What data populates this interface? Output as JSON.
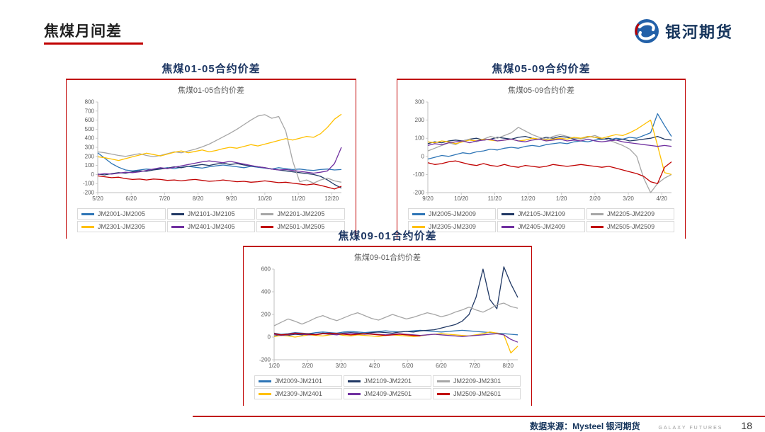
{
  "page": {
    "title": "焦煤月间差",
    "logo_text": "银河期货",
    "footer": {
      "source": "数据来源：Mysteel 银河期货",
      "brand": "GALAXY FUTURES",
      "page_number": "18"
    }
  },
  "colors": {
    "accent_red": "#C00000",
    "header_blue": "#1F3864",
    "axis_gray": "#BFBFBF",
    "text_gray": "#595959"
  },
  "chart_data": [
    {
      "type": "line",
      "header": "焦煤01-05合约价差",
      "inner_title": "焦煤01-05合约价差",
      "ylim": [
        -200,
        800
      ],
      "ytick_step": 100,
      "grid": false,
      "legend_position": "bottom",
      "x_labels": [
        "5/20",
        "6/20",
        "7/20",
        "8/20",
        "9/20",
        "10/20",
        "11/20",
        "12/20"
      ],
      "series": [
        {
          "name": "JM2001-JM2005",
          "color": "#2E75B6",
          "values": [
            240,
            180,
            120,
            80,
            50,
            40,
            50,
            60,
            55,
            65,
            75,
            65,
            80,
            90,
            80,
            70,
            85,
            95,
            105,
            95,
            85,
            75,
            90,
            80,
            70,
            60,
            75,
            65,
            55,
            60,
            50,
            45,
            55,
            60,
            50,
            55
          ]
        },
        {
          "name": "JM2101-JM2105",
          "color": "#203864",
          "values": [
            5,
            -5,
            10,
            20,
            15,
            30,
            40,
            35,
            50,
            60,
            70,
            85,
            75,
            90,
            100,
            110,
            100,
            115,
            125,
            110,
            120,
            105,
            95,
            85,
            75,
            60,
            50,
            40,
            30,
            20,
            10,
            0,
            -20,
            -60,
            -110,
            -150
          ]
        },
        {
          "name": "JM2201-JM2205",
          "color": "#A6A6A6",
          "values": [
            250,
            240,
            225,
            210,
            200,
            215,
            230,
            210,
            195,
            210,
            230,
            250,
            240,
            260,
            280,
            305,
            335,
            375,
            415,
            455,
            500,
            550,
            600,
            645,
            660,
            620,
            640,
            480,
            150,
            -80,
            -60,
            -95,
            -60,
            -40,
            -70,
            -85
          ]
        },
        {
          "name": "JM2301-JM2305",
          "color": "#FFC000",
          "values": [
            195,
            185,
            170,
            155,
            175,
            195,
            215,
            235,
            220,
            205,
            225,
            245,
            260,
            240,
            255,
            270,
            250,
            265,
            285,
            300,
            290,
            310,
            330,
            315,
            335,
            355,
            375,
            395,
            380,
            400,
            420,
            410,
            450,
            520,
            610,
            665
          ]
        },
        {
          "name": "JM2401-JM2405",
          "color": "#7030A0",
          "values": [
            0,
            10,
            5,
            15,
            25,
            20,
            30,
            45,
            60,
            75,
            65,
            80,
            95,
            110,
            125,
            140,
            150,
            140,
            130,
            145,
            130,
            115,
            100,
            85,
            75,
            60,
            50,
            55,
            45,
            35,
            25,
            15,
            25,
            40,
            120,
            300
          ]
        },
        {
          "name": "JM2501-JM2505",
          "color": "#C00000",
          "values": [
            -15,
            -25,
            -35,
            -30,
            -45,
            -55,
            -50,
            -60,
            -50,
            -55,
            -65,
            -60,
            -70,
            -60,
            -55,
            -65,
            -75,
            -70,
            -60,
            -70,
            -80,
            -75,
            -85,
            -80,
            -70,
            -80,
            -90,
            -85,
            -95,
            -105,
            -115,
            -105,
            -120,
            -140,
            -160,
            -130
          ]
        }
      ]
    },
    {
      "type": "line",
      "header": "焦煤05-09合约价差",
      "inner_title": "焦煤05-09合约价差",
      "ylim": [
        -200,
        300
      ],
      "ytick_step": 100,
      "grid": false,
      "legend_position": "bottom",
      "x_labels": [
        "9/20",
        "10/20",
        "11/20",
        "12/20",
        "1/20",
        "2/20",
        "3/20",
        "4/20"
      ],
      "series": [
        {
          "name": "JM2005-JM2009",
          "color": "#2E75B6",
          "values": [
            -15,
            -5,
            5,
            0,
            10,
            20,
            15,
            25,
            30,
            40,
            35,
            45,
            50,
            45,
            55,
            60,
            55,
            65,
            70,
            75,
            70,
            80,
            85,
            80,
            90,
            95,
            90,
            100,
            95,
            105,
            100,
            115,
            130,
            235,
            170,
            110
          ]
        },
        {
          "name": "JM2105-JM2109",
          "color": "#203864",
          "values": [
            70,
            80,
            75,
            85,
            90,
            85,
            95,
            100,
            90,
            95,
            105,
            100,
            95,
            105,
            110,
            100,
            95,
            105,
            100,
            110,
            105,
            95,
            100,
            110,
            105,
            95,
            100,
            90,
            95,
            85,
            90,
            95,
            100,
            110,
            95,
            90
          ]
        },
        {
          "name": "JM2205-JM2209",
          "color": "#A6A6A6",
          "values": [
            30,
            45,
            60,
            75,
            65,
            85,
            95,
            80,
            95,
            110,
            100,
            115,
            130,
            160,
            140,
            120,
            105,
            95,
            110,
            120,
            110,
            100,
            95,
            105,
            115,
            100,
            90,
            75,
            60,
            40,
            0,
            -120,
            -200,
            -150,
            -120,
            -100
          ]
        },
        {
          "name": "JM2305-JM2309",
          "color": "#FFC000",
          "values": [
            80,
            75,
            85,
            80,
            70,
            80,
            90,
            85,
            95,
            90,
            85,
            90,
            95,
            85,
            90,
            100,
            95,
            90,
            95,
            100,
            95,
            105,
            100,
            110,
            105,
            100,
            110,
            120,
            115,
            130,
            150,
            175,
            200,
            60,
            -90,
            -100
          ]
        },
        {
          "name": "JM2405-JM2409",
          "color": "#7030A0",
          "values": [
            60,
            70,
            65,
            75,
            80,
            85,
            75,
            85,
            90,
            95,
            85,
            90,
            95,
            85,
            80,
            90,
            95,
            85,
            90,
            95,
            85,
            90,
            85,
            95,
            85,
            80,
            85,
            90,
            80,
            75,
            70,
            65,
            60,
            55,
            60,
            55
          ]
        },
        {
          "name": "JM2505-JM2509",
          "color": "#C00000",
          "values": [
            -35,
            -45,
            -40,
            -30,
            -25,
            -35,
            -45,
            -50,
            -40,
            -50,
            -55,
            -45,
            -55,
            -60,
            -50,
            -55,
            -60,
            -55,
            -45,
            -50,
            -55,
            -50,
            -45,
            -50,
            -55,
            -60,
            -55,
            -65,
            -75,
            -85,
            -95,
            -110,
            -140,
            -150,
            -60,
            -30
          ]
        }
      ]
    },
    {
      "type": "line",
      "header": "焦煤09-01合约价差",
      "inner_title": "焦煤09-01合约价差",
      "ylim": [
        -200,
        600
      ],
      "ytick_step": 200,
      "grid": false,
      "legend_position": "bottom",
      "x_labels": [
        "1/20",
        "2/20",
        "3/20",
        "4/20",
        "5/20",
        "6/20",
        "7/20",
        "8/20"
      ],
      "series": [
        {
          "name": "JM2009-JM2101",
          "color": "#2E75B6",
          "values": [
            35,
            25,
            30,
            40,
            35,
            30,
            40,
            45,
            40,
            35,
            45,
            50,
            45,
            40,
            45,
            50,
            55,
            50,
            45,
            50,
            55,
            60,
            55,
            50,
            45,
            50,
            55,
            60,
            55,
            50,
            45,
            40,
            35,
            30,
            25,
            20
          ]
        },
        {
          "name": "JM2109-JM2201",
          "color": "#203864",
          "values": [
            10,
            20,
            15,
            25,
            20,
            30,
            25,
            35,
            30,
            25,
            35,
            40,
            35,
            30,
            40,
            45,
            40,
            35,
            45,
            50,
            45,
            55,
            60,
            65,
            80,
            95,
            110,
            140,
            200,
            350,
            600,
            330,
            250,
            620,
            470,
            350
          ]
        },
        {
          "name": "JM2209-JM2301",
          "color": "#A6A6A6",
          "values": [
            100,
            130,
            160,
            140,
            115,
            140,
            170,
            190,
            165,
            145,
            170,
            195,
            215,
            190,
            165,
            150,
            175,
            200,
            180,
            160,
            175,
            195,
            215,
            200,
            180,
            195,
            220,
            240,
            265,
            240,
            220,
            250,
            285,
            300,
            270,
            255
          ]
        },
        {
          "name": "JM2309-JM2401",
          "color": "#FFC000",
          "values": [
            5,
            15,
            10,
            0,
            10,
            20,
            15,
            10,
            20,
            25,
            15,
            10,
            20,
            15,
            10,
            5,
            15,
            20,
            15,
            10,
            5,
            10,
            20,
            25,
            30,
            25,
            20,
            15,
            10,
            20,
            30,
            45,
            35,
            20,
            -140,
            -80
          ]
        },
        {
          "name": "JM2409-JM2501",
          "color": "#7030A0",
          "values": [
            25,
            15,
            20,
            30,
            25,
            20,
            25,
            30,
            25,
            20,
            30,
            35,
            30,
            25,
            30,
            25,
            20,
            25,
            30,
            25,
            20,
            15,
            20,
            25,
            20,
            15,
            10,
            5,
            10,
            15,
            20,
            25,
            30,
            20,
            -20,
            -45
          ]
        },
        {
          "name": "JM2509-JM2601",
          "color": "#C00000",
          "values": [
            30,
            20,
            25,
            35,
            30,
            25,
            20,
            30,
            35,
            30,
            25,
            20,
            25,
            30,
            25,
            20,
            15,
            20,
            25,
            20,
            15,
            10,
            null,
            null,
            null,
            null,
            null,
            null,
            null,
            null,
            null,
            null,
            null,
            null,
            null,
            null
          ]
        }
      ]
    }
  ]
}
